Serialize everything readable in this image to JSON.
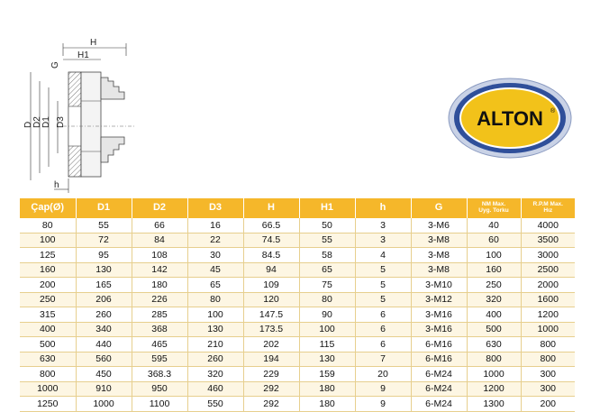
{
  "drawing": {
    "labels": {
      "H": "H",
      "H1": "H1",
      "G": "G",
      "D": "D",
      "D2": "D2",
      "D1": "D1",
      "D3": "D3",
      "h": "h"
    }
  },
  "logo": {
    "text": "ALTON",
    "mark": "®",
    "colors": {
      "ring": "#2f4f9a",
      "fill": "#f2c21a",
      "text": "#111111"
    }
  },
  "table": {
    "header_color": "#f5b72a",
    "headers": [
      {
        "key": "cap",
        "label": "Çap(Ø)",
        "sub": ""
      },
      {
        "key": "d1",
        "label": "D1",
        "sub": ""
      },
      {
        "key": "d2",
        "label": "D2",
        "sub": ""
      },
      {
        "key": "d3",
        "label": "D3",
        "sub": ""
      },
      {
        "key": "h_big",
        "label": "H",
        "sub": ""
      },
      {
        "key": "h1",
        "label": "H1",
        "sub": ""
      },
      {
        "key": "h_small",
        "label": "h",
        "sub": ""
      },
      {
        "key": "g",
        "label": "G",
        "sub": ""
      },
      {
        "key": "nm",
        "label": "NM Max.",
        "sub": "Uyg. Torku"
      },
      {
        "key": "rpm",
        "label": "R.P.M Max.",
        "sub": "Hız"
      }
    ],
    "rows": [
      [
        "80",
        "55",
        "66",
        "16",
        "66.5",
        "50",
        "3",
        "3-M6",
        "40",
        "4000"
      ],
      [
        "100",
        "72",
        "84",
        "22",
        "74.5",
        "55",
        "3",
        "3-M8",
        "60",
        "3500"
      ],
      [
        "125",
        "95",
        "108",
        "30",
        "84.5",
        "58",
        "4",
        "3-M8",
        "100",
        "3000"
      ],
      [
        "160",
        "130",
        "142",
        "45",
        "94",
        "65",
        "5",
        "3-M8",
        "160",
        "2500"
      ],
      [
        "200",
        "165",
        "180",
        "65",
        "109",
        "75",
        "5",
        "3-M10",
        "250",
        "2000"
      ],
      [
        "250",
        "206",
        "226",
        "80",
        "120",
        "80",
        "5",
        "3-M12",
        "320",
        "1600"
      ],
      [
        "315",
        "260",
        "285",
        "100",
        "147.5",
        "90",
        "6",
        "3-M16",
        "400",
        "1200"
      ],
      [
        "400",
        "340",
        "368",
        "130",
        "173.5",
        "100",
        "6",
        "3-M16",
        "500",
        "1000"
      ],
      [
        "500",
        "440",
        "465",
        "210",
        "202",
        "115",
        "6",
        "6-M16",
        "630",
        "800"
      ],
      [
        "630",
        "560",
        "595",
        "260",
        "194",
        "130",
        "7",
        "6-M16",
        "800",
        "800"
      ],
      [
        "800",
        "450",
        "368.3",
        "320",
        "229",
        "159",
        "20",
        "6-M24",
        "1000",
        "300"
      ],
      [
        "1000",
        "910",
        "950",
        "460",
        "292",
        "180",
        "9",
        "6-M24",
        "1200",
        "300"
      ],
      [
        "1250",
        "1000",
        "1100",
        "550",
        "292",
        "180",
        "9",
        "6-M24",
        "1300",
        "200"
      ]
    ]
  }
}
